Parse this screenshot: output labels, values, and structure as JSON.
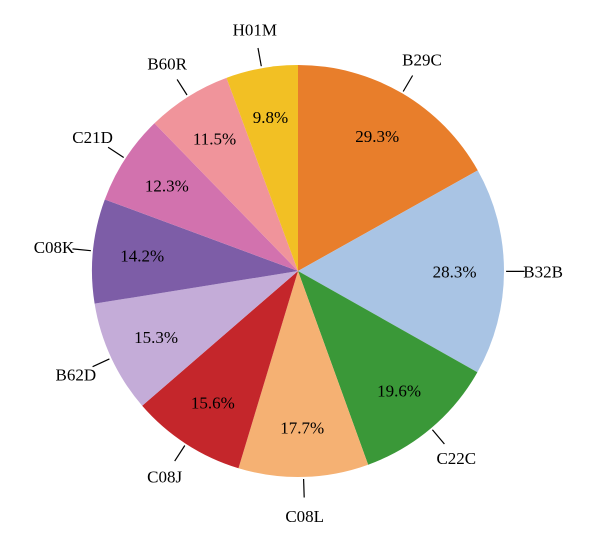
{
  "chart_data": {
    "type": "pie",
    "title": "",
    "categories": [
      "B29C",
      "B32B",
      "C22C",
      "C08L",
      "C08J",
      "B62D",
      "C08K",
      "C21D",
      "B60R",
      "H01M"
    ],
    "values": [
      29.3,
      28.3,
      19.6,
      17.7,
      15.6,
      15.3,
      14.2,
      12.3,
      11.5,
      9.8
    ],
    "percent_labels": [
      "29.3%",
      "28.3%",
      "19.6%",
      "17.7%",
      "15.6%",
      "15.3%",
      "14.2%",
      "12.3%",
      "11.5%",
      "9.8%"
    ],
    "colors": [
      "#E87E2B",
      "#A9C4E4",
      "#3A9838",
      "#F5B173",
      "#C4262B",
      "#C4ACD8",
      "#7D5DA7",
      "#D272AE",
      "#F0949B",
      "#F2C024"
    ],
    "legend": "none",
    "layout_hints": {
      "start_angle_deg": 90,
      "direction": "clockwise",
      "background": "#FFFFFF",
      "label_color": "#000000",
      "leader_line_color": "#000000",
      "inner_label_radius_frac": 0.76,
      "outer_label_radius_frac": 1.19,
      "leader_inner_radius_frac": 1.01,
      "leader_outer_radius_frac": 1.1
    }
  }
}
